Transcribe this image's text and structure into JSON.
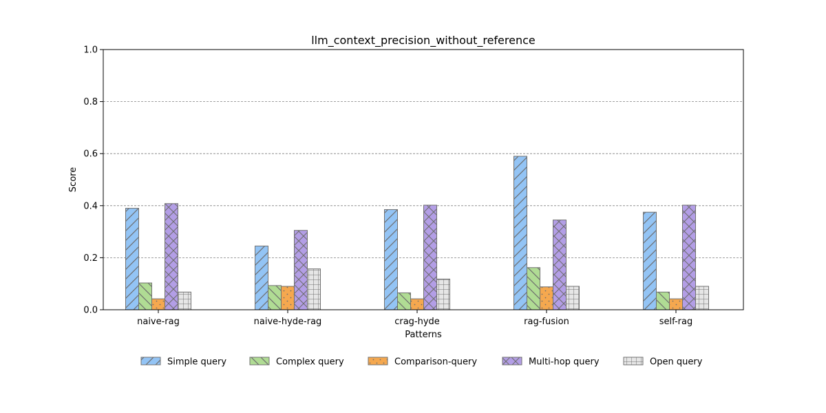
{
  "chart_data": {
    "type": "bar",
    "title": "llm_context_precision_without_reference",
    "xlabel": "Patterns",
    "ylabel": "Score",
    "ylim": [
      0,
      1.0
    ],
    "yticks": [
      "0.0",
      "0.2",
      "0.4",
      "0.6",
      "0.8",
      "1.0"
    ],
    "grid": "horizontal dashed",
    "legend_position": "bottom-center",
    "categories": [
      "naive-rag",
      "naive-hyde-rag",
      "crag-hyde",
      "rag-fusion",
      "self-rag"
    ],
    "series": [
      {
        "name": "Simple query",
        "color": "#93c4f5",
        "hatch": "diagonal",
        "values": [
          0.39,
          0.245,
          0.385,
          0.59,
          0.375
        ]
      },
      {
        "name": "Complex query",
        "color": "#b0dc94",
        "hatch": "backdiagonal",
        "values": [
          0.103,
          0.093,
          0.065,
          0.162,
          0.068
        ]
      },
      {
        "name": "Comparison-query",
        "color": "#f5a84f",
        "hatch": "dots",
        "values": [
          0.042,
          0.09,
          0.042,
          0.088,
          0.042
        ]
      },
      {
        "name": "Multi-hop query",
        "color": "#b39ee6",
        "hatch": "crosshatch",
        "values": [
          0.408,
          0.305,
          0.402,
          0.345,
          0.402
        ]
      },
      {
        "name": "Open query",
        "color": "#e6e6e6",
        "hatch": "grid",
        "values": [
          0.068,
          0.157,
          0.118,
          0.09,
          0.09
        ]
      }
    ]
  }
}
